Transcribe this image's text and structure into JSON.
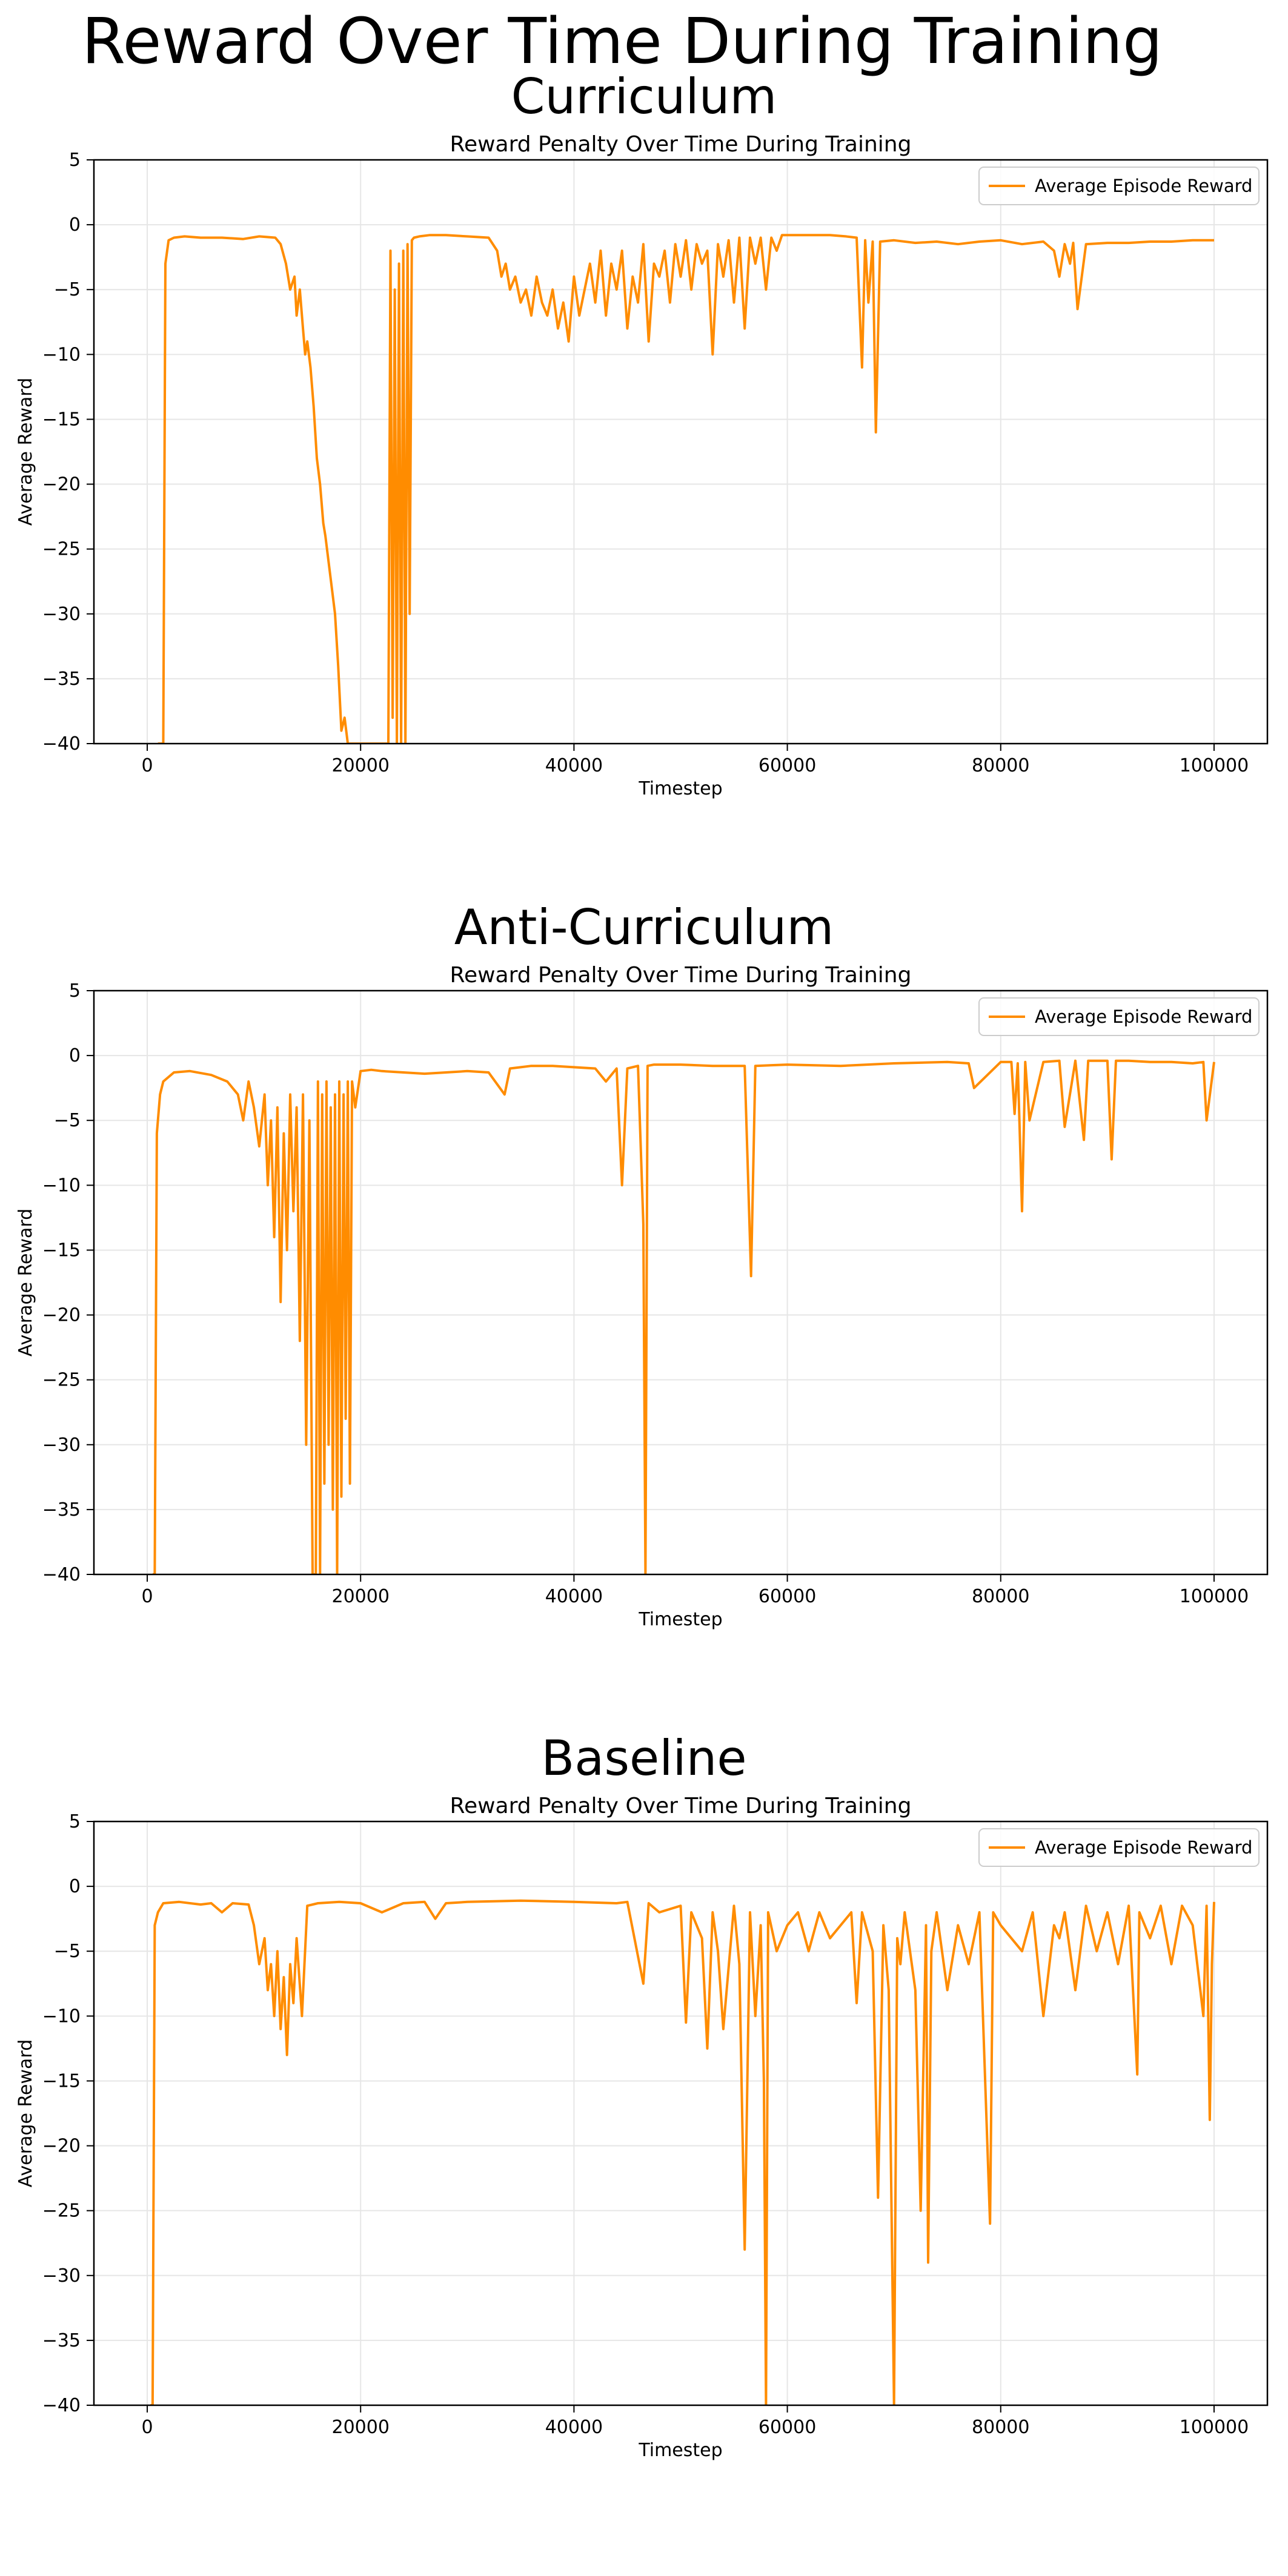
{
  "figure": {
    "title": "Reward Over Time During Training"
  },
  "chart_data": [
    {
      "type": "line",
      "panel_title": "Curriculum",
      "title": "Reward Penalty Over Time During Training",
      "xlabel": "Timestep",
      "ylabel": "Average Reward",
      "xlim": [
        -5000,
        105000
      ],
      "ylim": [
        -40,
        5
      ],
      "xticks": [
        0,
        20000,
        40000,
        60000,
        80000,
        100000
      ],
      "yticks": [
        5,
        0,
        -5,
        -10,
        -15,
        -20,
        -25,
        -30,
        -35,
        -40
      ],
      "grid": true,
      "legend_position": "upper right",
      "color": "#ff8c00",
      "series": [
        {
          "name": "Average Episode Reward",
          "x": [
            1000,
            1500,
            1700,
            2000,
            2500,
            3500,
            5000,
            7000,
            9000,
            10500,
            12000,
            12500,
            13000,
            13400,
            13800,
            14000,
            14300,
            14600,
            14800,
            15000,
            15300,
            15600,
            15900,
            16200,
            16500,
            16700,
            17000,
            17300,
            17600,
            17900,
            18200,
            18500,
            18800,
            22600,
            22800,
            23000,
            23200,
            23400,
            23600,
            23800,
            24000,
            24200,
            24400,
            24600,
            24800,
            25000,
            25500,
            26500,
            28000,
            30000,
            32000,
            32800,
            33200,
            33600,
            34000,
            34500,
            35000,
            35500,
            36000,
            36500,
            37000,
            37500,
            38000,
            38500,
            39000,
            39500,
            40000,
            40500,
            41000,
            41500,
            42000,
            42500,
            43000,
            43500,
            44000,
            44500,
            45000,
            45500,
            46000,
            46500,
            47000,
            47500,
            48000,
            48500,
            49000,
            49500,
            50000,
            50500,
            51000,
            51500,
            52000,
            52500,
            53000,
            53500,
            54000,
            54500,
            55000,
            55500,
            56000,
            56500,
            57000,
            57500,
            58000,
            58500,
            59000,
            59500,
            60000,
            62000,
            64000,
            65500,
            66500,
            67000,
            67300,
            67600,
            68000,
            68300,
            68700,
            70000,
            72000,
            74000,
            76000,
            78000,
            80000,
            82000,
            84000,
            85000,
            85500,
            86000,
            86500,
            86800,
            87200,
            88000,
            90000,
            92000,
            94000,
            96000,
            98000,
            100000
          ],
          "y": [
            -40,
            -40,
            -3,
            -1.2,
            -1.0,
            -0.9,
            -1.0,
            -1.0,
            -1.1,
            -0.9,
            -1.0,
            -1.5,
            -3,
            -5,
            -4,
            -7,
            -5,
            -8,
            -10,
            -9,
            -11,
            -14,
            -18,
            -20,
            -23,
            -24,
            -26,
            -28,
            -30,
            -34,
            -39,
            -38,
            -40,
            -40,
            -2,
            -38,
            -5,
            -40,
            -3,
            -40,
            -2,
            -40,
            -1.5,
            -30,
            -1.2,
            -1.0,
            -0.9,
            -0.8,
            -0.8,
            -0.9,
            -1.0,
            -2,
            -4,
            -3,
            -5,
            -4,
            -6,
            -5,
            -7,
            -4,
            -6,
            -7,
            -5,
            -8,
            -6,
            -9,
            -4,
            -7,
            -5,
            -3,
            -6,
            -2,
            -7,
            -3,
            -5,
            -2,
            -8,
            -4,
            -6,
            -1.5,
            -9,
            -3,
            -4,
            -2,
            -6,
            -1.5,
            -4,
            -1.2,
            -5,
            -1.5,
            -3,
            -2,
            -10,
            -1.5,
            -4,
            -1.2,
            -6,
            -1,
            -8,
            -1,
            -3,
            -1,
            -5,
            -1,
            -2,
            -0.8,
            -0.8,
            -0.8,
            -0.8,
            -0.9,
            -1.0,
            -11,
            -1.2,
            -6,
            -1.3,
            -16,
            -1.3,
            -1.2,
            -1.4,
            -1.3,
            -1.5,
            -1.3,
            -1.2,
            -1.5,
            -1.3,
            -2,
            -4,
            -1.5,
            -3,
            -1.4,
            -6.5,
            -1.5,
            -1.4,
            -1.4,
            -1.3,
            -1.3,
            -1.2,
            -1.2
          ]
        }
      ]
    },
    {
      "type": "line",
      "panel_title": "Anti-Curriculum",
      "title": "Reward Penalty Over Time During Training",
      "xlabel": "Timestep",
      "ylabel": "Average Reward",
      "xlim": [
        -5000,
        105000
      ],
      "ylim": [
        -40,
        5
      ],
      "xticks": [
        0,
        20000,
        40000,
        60000,
        80000,
        100000
      ],
      "yticks": [
        5,
        0,
        -5,
        -10,
        -15,
        -20,
        -25,
        -30,
        -35,
        -40
      ],
      "grid": true,
      "legend_position": "upper right",
      "color": "#ff8c00",
      "series": [
        {
          "name": "Average Episode Reward",
          "x": [
            500,
            700,
            900,
            1200,
            1500,
            2500,
            4000,
            6000,
            7500,
            8500,
            9000,
            9500,
            10000,
            10500,
            11000,
            11300,
            11600,
            11900,
            12200,
            12500,
            12800,
            13100,
            13400,
            13700,
            14000,
            14300,
            14600,
            14900,
            15200,
            15500,
            15800,
            16000,
            16200,
            16400,
            16600,
            16800,
            17000,
            17200,
            17400,
            17600,
            17800,
            18000,
            18200,
            18400,
            18600,
            18800,
            19000,
            19200,
            19500,
            20000,
            21000,
            22000,
            24000,
            26000,
            28000,
            30000,
            32000,
            33500,
            34000,
            35000,
            36000,
            38000,
            40000,
            42000,
            43000,
            44000,
            44500,
            45000,
            46000,
            46500,
            46700,
            46900,
            47500,
            50000,
            53000,
            56000,
            56600,
            57000,
            60000,
            65000,
            70000,
            75000,
            77000,
            77500,
            80000,
            81000,
            81300,
            81600,
            82000,
            82300,
            82700,
            84000,
            85500,
            86000,
            87000,
            87800,
            88200,
            90000,
            90400,
            90800,
            92000,
            94000,
            96000,
            98000,
            99000,
            99300,
            100000
          ],
          "y": [
            -40,
            -40,
            -6,
            -3,
            -2,
            -1.3,
            -1.2,
            -1.5,
            -2,
            -3,
            -5,
            -2,
            -4,
            -7,
            -3,
            -10,
            -5,
            -14,
            -4,
            -19,
            -6,
            -15,
            -3,
            -12,
            -4,
            -22,
            -3,
            -30,
            -5,
            -40,
            -40,
            -2,
            -40,
            -3,
            -33,
            -2,
            -30,
            -4,
            -35,
            -3,
            -40,
            -2,
            -34,
            -3,
            -28,
            -2,
            -33,
            -2,
            -4,
            -1.2,
            -1.1,
            -1.2,
            -1.3,
            -1.4,
            -1.3,
            -1.2,
            -1.3,
            -3,
            -1,
            -0.9,
            -0.8,
            -0.8,
            -0.9,
            -1,
            -2,
            -1,
            -10,
            -1,
            -0.8,
            -13,
            -40,
            -0.8,
            -0.7,
            -0.7,
            -0.8,
            -0.8,
            -17,
            -0.8,
            -0.7,
            -0.8,
            -0.6,
            -0.5,
            -0.6,
            -2.5,
            -0.5,
            -0.5,
            -4.5,
            -0.6,
            -12,
            -0.5,
            -5,
            -0.5,
            -0.4,
            -5.5,
            -0.4,
            -6.5,
            -0.4,
            -0.4,
            -8,
            -0.4,
            -0.4,
            -0.5,
            -0.5,
            -0.6,
            -0.5,
            -5,
            -0.5
          ]
        }
      ]
    },
    {
      "type": "line",
      "panel_title": "Baseline",
      "title": "Reward Penalty Over Time During Training",
      "xlabel": "Timestep",
      "ylabel": "Average Reward",
      "xlim": [
        -5000,
        105000
      ],
      "ylim": [
        -40,
        5
      ],
      "xticks": [
        0,
        20000,
        40000,
        60000,
        80000,
        100000
      ],
      "yticks": [
        5,
        0,
        -5,
        -10,
        -15,
        -20,
        -25,
        -30,
        -35,
        -40
      ],
      "grid": true,
      "legend_position": "upper right",
      "color": "#ff8c00",
      "series": [
        {
          "name": "Average Episode Reward",
          "x": [
            300,
            500,
            700,
            1000,
            1500,
            3000,
            5000,
            6000,
            7000,
            8000,
            9500,
            10000,
            10500,
            11000,
            11300,
            11600,
            11900,
            12200,
            12500,
            12800,
            13100,
            13400,
            13700,
            14000,
            14500,
            15000,
            16000,
            18000,
            20000,
            22000,
            24000,
            26000,
            27000,
            28000,
            30000,
            35000,
            40000,
            44000,
            45000,
            46500,
            47000,
            48000,
            50000,
            50500,
            51000,
            52000,
            52500,
            53000,
            53500,
            54000,
            55000,
            55500,
            56000,
            56500,
            57000,
            57500,
            57800,
            58000,
            58200,
            59000,
            60000,
            61000,
            62000,
            63000,
            64000,
            65000,
            66000,
            66500,
            67000,
            68000,
            68500,
            69000,
            69500,
            70000,
            70300,
            70600,
            71000,
            72000,
            72500,
            73000,
            73200,
            73500,
            74000,
            75000,
            76000,
            77000,
            78000,
            79000,
            79300,
            80000,
            82000,
            83000,
            84000,
            85000,
            85500,
            86000,
            87000,
            88000,
            89000,
            90000,
            91000,
            92000,
            92800,
            93000,
            94000,
            95000,
            96000,
            97000,
            98000,
            99000,
            99300,
            99600,
            99800,
            100000
          ],
          "y": [
            -40,
            -40,
            -3,
            -2,
            -1.3,
            -1.2,
            -1.4,
            -1.3,
            -2,
            -1.3,
            -1.4,
            -3,
            -6,
            -4,
            -8,
            -6,
            -10,
            -5,
            -11,
            -7,
            -13,
            -6,
            -9,
            -4,
            -10,
            -1.5,
            -1.3,
            -1.2,
            -1.3,
            -2,
            -1.3,
            -1.2,
            -2.5,
            -1.3,
            -1.2,
            -1.1,
            -1.2,
            -1.3,
            -1.2,
            -7.5,
            -1.3,
            -2,
            -1.5,
            -10.5,
            -2,
            -4,
            -12.5,
            -2,
            -5,
            -11,
            -1.5,
            -6,
            -28,
            -2,
            -10,
            -3,
            -15,
            -40,
            -2,
            -5,
            -3,
            -2,
            -5,
            -2,
            -4,
            -3,
            -2,
            -9,
            -2,
            -5,
            -24,
            -3,
            -8,
            -40,
            -4,
            -6,
            -2,
            -8,
            -25,
            -3,
            -29,
            -5,
            -2,
            -8,
            -3,
            -6,
            -2,
            -26,
            -2,
            -3,
            -5,
            -2,
            -10,
            -3,
            -4,
            -2,
            -8,
            -1.5,
            -5,
            -2,
            -6,
            -1.5,
            -14.5,
            -2,
            -4,
            -1.5,
            -6,
            -1.5,
            -3,
            -10,
            -1.5,
            -18,
            -6,
            -1.2
          ]
        }
      ]
    }
  ]
}
